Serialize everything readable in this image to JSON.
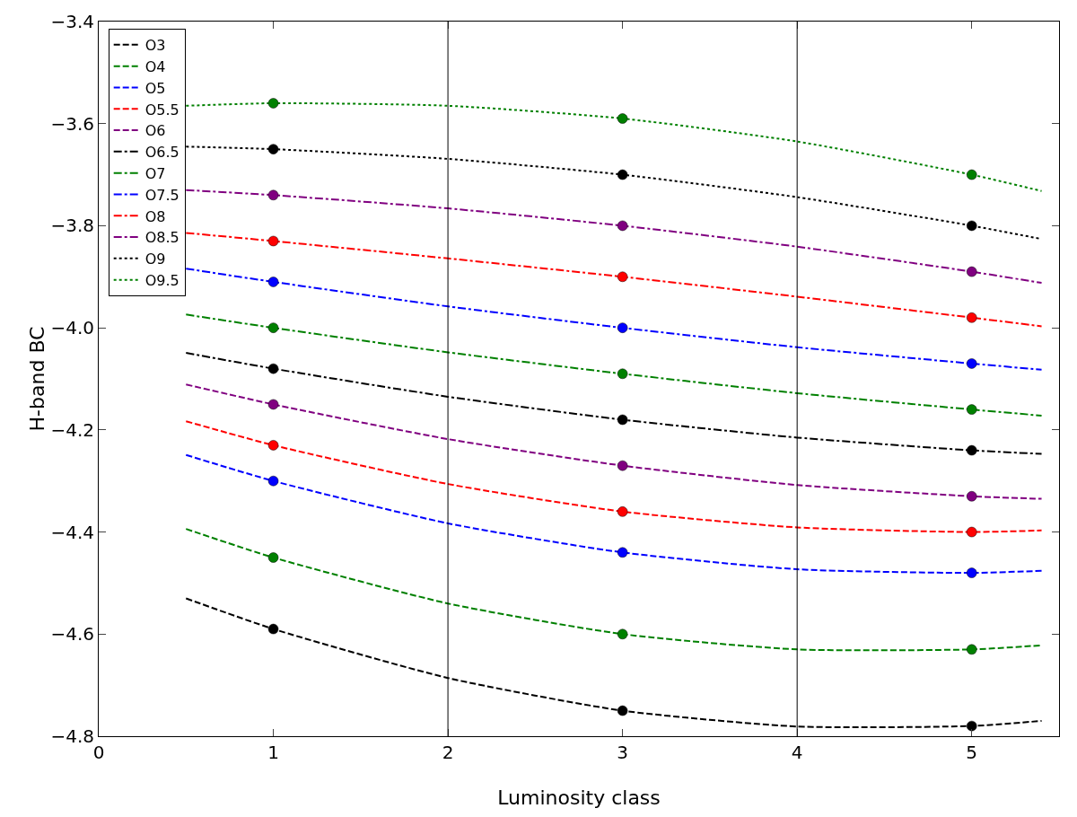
{
  "chart_data": {
    "type": "line",
    "xlabel": "Luminosity class",
    "ylabel": "H-band BC",
    "xlim": [
      0,
      5.5
    ],
    "xticks": [
      0,
      1,
      2,
      3,
      4,
      5
    ],
    "ylim": [
      -4.8,
      -3.4
    ],
    "yticks": [
      {
        "value": -4.8,
        "label": "−4.8"
      },
      {
        "value": -4.6,
        "label": "−4.6"
      },
      {
        "value": -4.4,
        "label": "−4.4"
      },
      {
        "value": -4.2,
        "label": "−4.2"
      },
      {
        "value": -4.0,
        "label": "−4.0"
      },
      {
        "value": -3.8,
        "label": "−3.8"
      },
      {
        "value": -3.6,
        "label": "−3.6"
      },
      {
        "value": -3.4,
        "label": "−3.4"
      }
    ],
    "grid": false,
    "legend": "top left",
    "ref_lines": [
      {
        "axis": "x",
        "value": 2,
        "color": "#000000"
      },
      {
        "axis": "x",
        "value": 4,
        "color": "#000000"
      }
    ],
    "series": [
      {
        "name": "O3",
        "color": "#000000",
        "line_style": "dashed",
        "x": [
          0.5,
          1,
          2,
          3,
          4,
          5,
          5.4
        ],
        "values": [
          -4.53,
          -4.59,
          -4.686,
          -4.75,
          -4.781,
          -4.78,
          -4.77
        ]
      },
      {
        "name": "O4",
        "color": "#008000",
        "line_style": "dashed",
        "x": [
          0.5,
          1,
          2,
          3,
          4,
          5,
          5.4
        ],
        "values": [
          -4.394,
          -4.45,
          -4.54,
          -4.6,
          -4.63,
          -4.63,
          -4.622
        ]
      },
      {
        "name": "O5",
        "color": "#0000ff",
        "line_style": "dashed",
        "x": [
          0.5,
          1,
          2,
          3,
          4,
          5,
          5.4
        ],
        "values": [
          -4.249,
          -4.3,
          -4.383,
          -4.44,
          -4.473,
          -4.48,
          -4.476
        ]
      },
      {
        "name": "O5.5",
        "color": "#ff0000",
        "line_style": "dashed",
        "x": [
          0.5,
          1,
          2,
          3,
          4,
          5,
          5.4
        ],
        "values": [
          -4.183,
          -4.23,
          -4.306,
          -4.36,
          -4.391,
          -4.4,
          -4.397
        ]
      },
      {
        "name": "O6",
        "color": "#800080",
        "line_style": "dashed",
        "x": [
          0.5,
          1,
          2,
          3,
          4,
          5,
          5.4
        ],
        "values": [
          -4.111,
          -4.15,
          -4.218,
          -4.27,
          -4.308,
          -4.33,
          -4.335
        ]
      },
      {
        "name": "O6.5",
        "color": "#000000",
        "line_style": "dashdot",
        "x": [
          0.5,
          1,
          2,
          3,
          4,
          5,
          5.4
        ],
        "values": [
          -4.049,
          -4.08,
          -4.135,
          -4.18,
          -4.215,
          -4.24,
          -4.247
        ]
      },
      {
        "name": "O7",
        "color": "#008000",
        "line_style": "dashdot",
        "x": [
          0.5,
          1,
          2,
          3,
          4,
          5,
          5.4
        ],
        "values": [
          -3.974,
          -4.0,
          -4.048,
          -4.09,
          -4.128,
          -4.16,
          -4.172
        ]
      },
      {
        "name": "O7.5",
        "color": "#0000ff",
        "line_style": "dashdot",
        "x": [
          0.5,
          1,
          2,
          3,
          4,
          5,
          5.4
        ],
        "values": [
          -3.884,
          -3.91,
          -3.958,
          -4.0,
          -4.038,
          -4.07,
          -4.082
        ]
      },
      {
        "name": "O8",
        "color": "#ff0000",
        "line_style": "dashdot",
        "x": [
          0.5,
          1,
          2,
          3,
          4,
          5,
          5.4
        ],
        "values": [
          -3.814,
          -3.83,
          -3.864,
          -3.9,
          -3.939,
          -3.98,
          -3.997
        ]
      },
      {
        "name": "O8.5",
        "color": "#800080",
        "line_style": "dashdot",
        "x": [
          0.5,
          1,
          2,
          3,
          4,
          5,
          5.4
        ],
        "values": [
          -3.73,
          -3.74,
          -3.766,
          -3.8,
          -3.841,
          -3.89,
          -3.912
        ]
      },
      {
        "name": "O9",
        "color": "#000000",
        "line_style": "dotted",
        "x": [
          0.5,
          1,
          2,
          3,
          4,
          5,
          5.4
        ],
        "values": [
          -3.645,
          -3.65,
          -3.669,
          -3.7,
          -3.744,
          -3.8,
          -3.826
        ]
      },
      {
        "name": "O9.5",
        "color": "#008000",
        "line_style": "dotted",
        "x": [
          0.5,
          1,
          2,
          3,
          4,
          5,
          5.4
        ],
        "values": [
          -3.565,
          -3.56,
          -3.565,
          -3.59,
          -3.635,
          -3.7,
          -3.732
        ]
      },
      {
        "type": "scatter",
        "marker": "circle",
        "color": "#000000",
        "x": [
          1,
          3,
          5
        ],
        "values": [
          -4.59,
          -4.75,
          -4.78
        ]
      },
      {
        "type": "scatter",
        "marker": "circle",
        "color": "#008000",
        "x": [
          1,
          3,
          5
        ],
        "values": [
          -4.45,
          -4.6,
          -4.63
        ]
      },
      {
        "type": "scatter",
        "marker": "circle",
        "color": "#0000ff",
        "x": [
          1,
          3,
          5
        ],
        "values": [
          -4.3,
          -4.44,
          -4.48
        ]
      },
      {
        "type": "scatter",
        "marker": "circle",
        "color": "#ff0000",
        "x": [
          1,
          3,
          5
        ],
        "values": [
          -4.23,
          -4.36,
          -4.4
        ]
      },
      {
        "type": "scatter",
        "marker": "circle",
        "color": "#800080",
        "x": [
          1,
          3,
          5
        ],
        "values": [
          -4.15,
          -4.27,
          -4.33
        ]
      },
      {
        "type": "scatter",
        "marker": "circle",
        "color": "#000000",
        "x": [
          1,
          3,
          5
        ],
        "values": [
          -4.08,
          -4.18,
          -4.24
        ]
      },
      {
        "type": "scatter",
        "marker": "circle",
        "color": "#008000",
        "x": [
          1,
          3,
          5
        ],
        "values": [
          -4.0,
          -4.09,
          -4.16
        ]
      },
      {
        "type": "scatter",
        "marker": "circle",
        "color": "#0000ff",
        "x": [
          1,
          3,
          5
        ],
        "values": [
          -3.91,
          -4.0,
          -4.07
        ]
      },
      {
        "type": "scatter",
        "marker": "circle",
        "color": "#ff0000",
        "x": [
          1,
          3,
          5
        ],
        "values": [
          -3.83,
          -3.9,
          -3.98
        ]
      },
      {
        "type": "scatter",
        "marker": "circle",
        "color": "#800080",
        "x": [
          1,
          3,
          5
        ],
        "values": [
          -3.74,
          -3.8,
          -3.89
        ]
      },
      {
        "type": "scatter",
        "marker": "circle",
        "color": "#000000",
        "x": [
          1,
          3,
          5
        ],
        "values": [
          -3.65,
          -3.7,
          -3.8
        ]
      },
      {
        "type": "scatter",
        "marker": "circle",
        "color": "#008000",
        "x": [
          1,
          3,
          5
        ],
        "values": [
          -3.56,
          -3.59,
          -3.7
        ]
      }
    ]
  }
}
